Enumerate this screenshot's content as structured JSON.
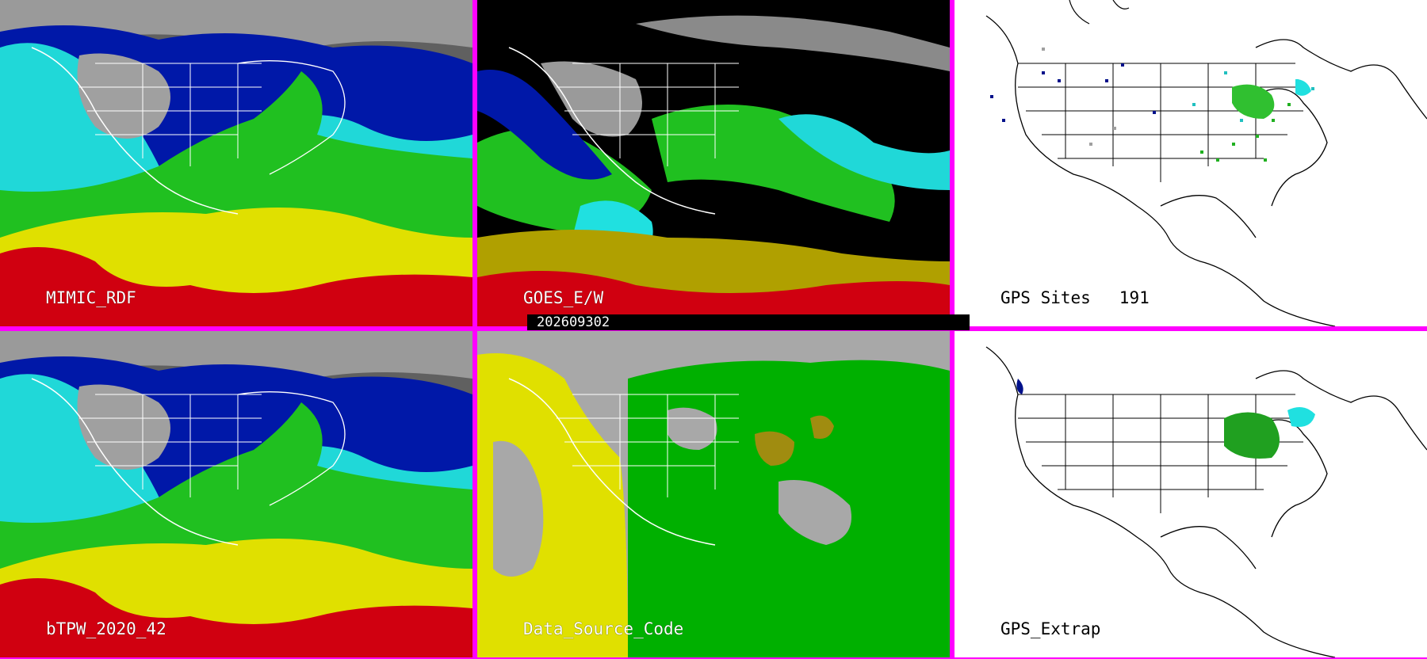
{
  "panels": [
    {
      "id": "mimic",
      "label": "MIMIC_RDF",
      "style": "tpw"
    },
    {
      "id": "goes",
      "label": "GOES_E/W",
      "style": "goes"
    },
    {
      "id": "gps-sites",
      "label": "GPS Sites",
      "count": "191",
      "style": "white"
    },
    {
      "id": "btpw",
      "label": "bTPW_2020_42",
      "style": "tpw"
    },
    {
      "id": "data-source",
      "label": "Data_Source_Code",
      "style": "dsc"
    },
    {
      "id": "gps-extrap",
      "label": "GPS_Extrap",
      "style": "white"
    }
  ],
  "timestamp": "202609302",
  "colors": {
    "divider": "#ff00ff",
    "tpw_red": "#d00010",
    "tpw_yellow": "#e0e000",
    "tpw_green": "#20c020",
    "tpw_cyan": "#20e0e0",
    "tpw_blue": "#0010a0",
    "land_gray": "#b0b0b0",
    "dsc_gray": "#a8a8a8",
    "dsc_yellow": "#e0e000",
    "dsc_green": "#00b000",
    "dsc_olive": "#a08c10"
  }
}
